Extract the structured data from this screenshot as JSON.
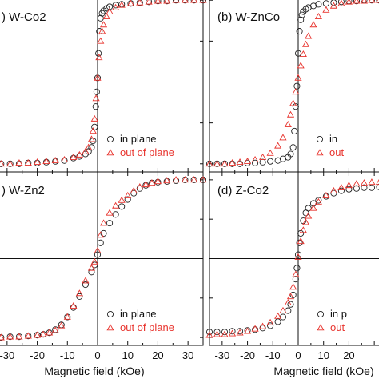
{
  "xlabel": "Magnetic field (kOe)",
  "colors": {
    "in_plane": "#222222",
    "out_of_plane": "#e8342e",
    "axes": "#111111"
  },
  "legend": {
    "series_a": "in plane",
    "series_b": "out of plane"
  },
  "chart_data": [
    {
      "type": "scatter",
      "title": "W-Co2",
      "panel_letter": "(a)",
      "xlim": [
        -35,
        35
      ],
      "ylim": [
        -1.1,
        1.1
      ],
      "xticks": [],
      "legend_items": [
        "in plane",
        "out of plane"
      ],
      "series": [
        {
          "name": "in plane",
          "marker": "circle",
          "x": [
            -35,
            -32,
            -29,
            -26,
            -23,
            -20,
            -17,
            -14,
            -11,
            -8,
            -6,
            -4,
            -3,
            -2,
            -1.5,
            -1,
            -0.6,
            -0.3,
            0,
            0.3,
            0.6,
            1,
            1.5,
            2,
            3,
            4,
            6,
            8,
            11,
            14,
            17,
            20,
            23,
            26,
            29,
            32,
            35
          ],
          "y": [
            -1.0,
            -1.0,
            -1.0,
            -1.0,
            -0.99,
            -0.99,
            -0.98,
            -0.97,
            -0.96,
            -0.93,
            -0.91,
            -0.88,
            -0.85,
            -0.8,
            -0.72,
            -0.55,
            -0.3,
            -0.12,
            0.05,
            0.35,
            0.62,
            0.78,
            0.84,
            0.87,
            0.9,
            0.92,
            0.94,
            0.95,
            0.96,
            0.97,
            0.98,
            0.99,
            0.99,
            1.0,
            1.0,
            1.0,
            1.0
          ]
        },
        {
          "name": "out of plane",
          "marker": "triangle",
          "x": [
            -35,
            -32,
            -29,
            -26,
            -23,
            -20,
            -17,
            -14,
            -11,
            -8,
            -6,
            -4,
            -3,
            -2,
            -1.5,
            -1,
            -0.5,
            0,
            0.5,
            1,
            1.5,
            2,
            3,
            4,
            6,
            8,
            11,
            14,
            17,
            20,
            23,
            26,
            29,
            32,
            35
          ],
          "y": [
            -1.0,
            -1.0,
            -1.0,
            -0.99,
            -0.99,
            -0.98,
            -0.97,
            -0.96,
            -0.95,
            -0.92,
            -0.89,
            -0.85,
            -0.8,
            -0.7,
            -0.6,
            -0.45,
            -0.2,
            0.05,
            0.3,
            0.5,
            0.62,
            0.7,
            0.8,
            0.86,
            0.91,
            0.94,
            0.96,
            0.97,
            0.98,
            0.99,
            0.99,
            1.0,
            1.0,
            1.0,
            1.0
          ]
        }
      ]
    },
    {
      "type": "scatter",
      "title": "W-ZnCo",
      "panel_letter": "(b)",
      "xlim": [
        -35,
        35
      ],
      "ylim": [
        -1.1,
        1.1
      ],
      "xticks": [],
      "legend_items": [
        "in",
        "out"
      ],
      "series": [
        {
          "name": "in plane",
          "marker": "circle",
          "x": [
            -35,
            -32,
            -29,
            -26,
            -23,
            -20,
            -17,
            -14,
            -11,
            -8,
            -6,
            -4,
            -3,
            -2,
            -1.5,
            -1,
            -0.5,
            0,
            0.5,
            1,
            1.5,
            2,
            3,
            4,
            6,
            8,
            11,
            14,
            17,
            20,
            23,
            26,
            29,
            32,
            35
          ],
          "y": [
            -1.0,
            -1.0,
            -1.0,
            -1.0,
            -1.0,
            -0.99,
            -0.99,
            -0.98,
            -0.97,
            -0.96,
            -0.94,
            -0.92,
            -0.88,
            -0.8,
            -0.6,
            -0.3,
            -0.05,
            0.35,
            0.62,
            0.76,
            0.82,
            0.86,
            0.89,
            0.91,
            0.93,
            0.95,
            0.96,
            0.97,
            0.98,
            0.99,
            0.99,
            1.0,
            1.0,
            1.0,
            1.0
          ]
        },
        {
          "name": "out of plane",
          "marker": "triangle",
          "x": [
            -35,
            -32,
            -29,
            -26,
            -23,
            -20,
            -17,
            -14,
            -11,
            -8,
            -6,
            -4,
            -3,
            -2,
            -1,
            0,
            1,
            2,
            3,
            4,
            6,
            8,
            11,
            14,
            17,
            20,
            23,
            26,
            29,
            32,
            35
          ],
          "y": [
            -1.0,
            -1.0,
            -1.0,
            -0.99,
            -0.98,
            -0.97,
            -0.95,
            -0.92,
            -0.87,
            -0.78,
            -0.68,
            -0.52,
            -0.4,
            -0.26,
            -0.12,
            0.05,
            0.2,
            0.34,
            0.46,
            0.56,
            0.7,
            0.8,
            0.88,
            0.93,
            0.96,
            0.98,
            0.99,
            0.99,
            1.0,
            1.0,
            1.0
          ]
        }
      ]
    },
    {
      "type": "scatter",
      "title": "W-Zn2",
      "panel_letter": "(c)",
      "xlim": [
        -35,
        35
      ],
      "ylim": [
        -1.1,
        1.1
      ],
      "xticks": [
        -30,
        -20,
        -10,
        0,
        10,
        20,
        30
      ],
      "legend_items": [
        "in plane",
        "out of plane"
      ],
      "series": [
        {
          "name": "in plane",
          "marker": "circle",
          "x": [
            -35,
            -32,
            -29,
            -26,
            -23,
            -20,
            -18,
            -16,
            -14,
            -12,
            -10,
            -8,
            -6,
            -4,
            -2,
            -1,
            0,
            1,
            2,
            4,
            6,
            8,
            10,
            12,
            14,
            16,
            18,
            20,
            23,
            26,
            29,
            32,
            35
          ],
          "y": [
            -1.0,
            -1.0,
            -0.99,
            -0.99,
            -0.98,
            -0.97,
            -0.96,
            -0.94,
            -0.9,
            -0.84,
            -0.74,
            -0.62,
            -0.48,
            -0.33,
            -0.17,
            -0.08,
            0.05,
            0.2,
            0.32,
            0.45,
            0.56,
            0.66,
            0.75,
            0.83,
            0.89,
            0.93,
            0.96,
            0.97,
            0.98,
            0.99,
            1.0,
            1.0,
            1.0
          ]
        },
        {
          "name": "out of plane",
          "marker": "triangle",
          "x": [
            -35,
            -32,
            -29,
            -26,
            -23,
            -20,
            -18,
            -16,
            -14,
            -12,
            -10,
            -8,
            -6,
            -4,
            -2,
            -1,
            0,
            1,
            2,
            4,
            6,
            8,
            10,
            12,
            14,
            16,
            18,
            20,
            23,
            26,
            29,
            32,
            35
          ],
          "y": [
            -1.0,
            -1.0,
            -0.99,
            -0.99,
            -0.98,
            -0.97,
            -0.96,
            -0.94,
            -0.91,
            -0.85,
            -0.74,
            -0.6,
            -0.44,
            -0.28,
            -0.12,
            -0.04,
            0.1,
            0.3,
            0.45,
            0.58,
            0.67,
            0.74,
            0.8,
            0.86,
            0.91,
            0.94,
            0.96,
            0.98,
            0.99,
            1.0,
            1.0,
            1.0,
            1.0
          ]
        }
      ]
    },
    {
      "type": "scatter",
      "title": "Z-Co2",
      "panel_letter": "(d)",
      "xlim": [
        -35,
        35
      ],
      "ylim": [
        -1.1,
        1.1
      ],
      "xticks": [
        -30,
        -20,
        -10,
        0,
        10,
        20
      ],
      "legend_items": [
        "in p",
        "out"
      ],
      "series": [
        {
          "name": "in plane",
          "marker": "circle",
          "x": [
            -35,
            -32,
            -29,
            -26,
            -23,
            -20,
            -17,
            -14,
            -11,
            -8,
            -6,
            -4,
            -3,
            -2,
            -1,
            -0.5,
            0,
            0.5,
            1,
            2,
            3,
            4,
            6,
            8,
            11,
            14,
            17,
            20,
            23,
            26,
            29,
            32,
            35
          ],
          "y": [
            -0.93,
            -0.93,
            -0.93,
            -0.92,
            -0.92,
            -0.91,
            -0.9,
            -0.88,
            -0.85,
            -0.8,
            -0.74,
            -0.66,
            -0.58,
            -0.46,
            -0.26,
            -0.12,
            0.05,
            0.2,
            0.32,
            0.48,
            0.58,
            0.64,
            0.7,
            0.74,
            0.79,
            0.83,
            0.86,
            0.88,
            0.89,
            0.9,
            0.9,
            0.91,
            0.91
          ]
        },
        {
          "name": "out of plane",
          "marker": "triangle",
          "x": [
            -35,
            -32,
            -29,
            -26,
            -23,
            -20,
            -17,
            -14,
            -11,
            -8,
            -6,
            -4,
            -3,
            -2,
            -1,
            0,
            1,
            2,
            3,
            4,
            6,
            8,
            11,
            14,
            17,
            20,
            23,
            26,
            29,
            32,
            35
          ],
          "y": [
            -0.97,
            -0.96,
            -0.96,
            -0.95,
            -0.94,
            -0.92,
            -0.89,
            -0.86,
            -0.81,
            -0.73,
            -0.66,
            -0.56,
            -0.48,
            -0.36,
            -0.2,
            0.02,
            0.22,
            0.36,
            0.46,
            0.54,
            0.64,
            0.72,
            0.8,
            0.86,
            0.9,
            0.93,
            0.95,
            0.96,
            0.97,
            0.97,
            0.98
          ]
        }
      ]
    }
  ]
}
